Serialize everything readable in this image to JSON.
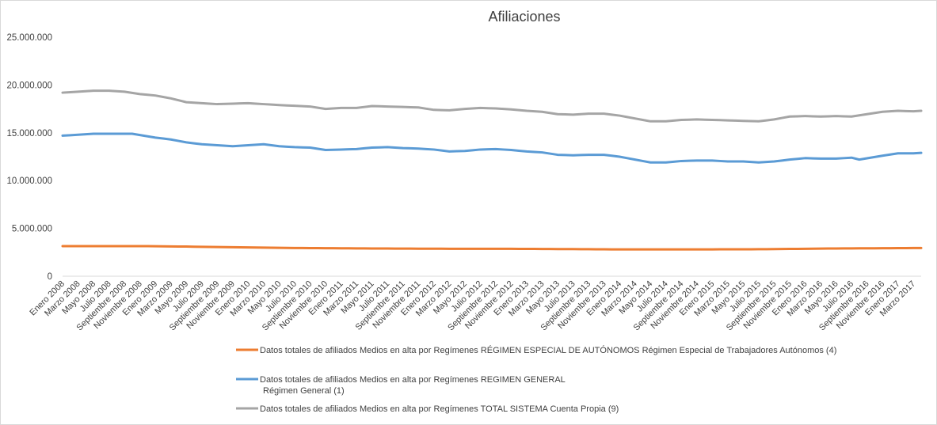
{
  "chart_data": {
    "type": "line",
    "title": "Afiliaciones",
    "xlabel": "",
    "ylabel": "",
    "ylim": [
      0,
      25000000
    ],
    "yticks": [
      0,
      5000000,
      10000000,
      15000000,
      20000000,
      25000000
    ],
    "ytick_labels": [
      "0",
      "5.000.000",
      "10.000.000",
      "15.000.000",
      "20.000.000",
      "25.000.000"
    ],
    "grid": false,
    "legend_position": "bottom",
    "n_points": 112,
    "x_tick_labels": [
      "Enero 2008",
      "Marzo 2008",
      "Mayo 2008",
      "Julio 2008",
      "Septiembre 2008",
      "Noviembre 2008",
      "Enero 2009",
      "Marzo 2009",
      "Mayo 2009",
      "Julio 2009",
      "Septiembre 2009",
      "Noviembre 2009",
      "Enero 2010",
      "Marzo 2010",
      "Mayo 2010",
      "Julio 2010",
      "Septiembre 2010",
      "Noviembre 2010",
      "Enero 2011",
      "Marzo 2011",
      "Mayo 2011",
      "Julio 2011",
      "Septiembre 2011",
      "Noviembre 2011",
      "Enero 2012",
      "Marzo 2012",
      "Mayo 2012",
      "Julio 2012",
      "Septiembre 2012",
      "Noviembre 2012",
      "Enero 2013",
      "Marzo 2013",
      "Mayo 2013",
      "Julio 2013",
      "Septiembre 2013",
      "Noviembre 2013",
      "Enero 2014",
      "Marzo 2014",
      "Mayo 2014",
      "Julio 2014",
      "Septiembre 2014",
      "Noviembre 2014",
      "Enero 2015",
      "Marzo 2015",
      "Mayo 2015",
      "Julio 2015",
      "Septiembre 2015",
      "Noviembre 2015",
      "Enero 2016",
      "Marzo 2016",
      "Mayo 2016",
      "Julio 2016",
      "Septiembre 2016",
      "Noviembre 2016",
      "Enero 2017",
      "Marzo 2017"
    ],
    "series": [
      {
        "name": "autonomos",
        "legend": "Datos totales de afiliados Medios en alta por Regímenes RÉGIMEN ESPECIAL DE AUTÓNOMOS Régimen Especial de Trabajadores Autónomos (4)",
        "color": "#ED7D31",
        "anchors": [
          [
            0,
            3150000
          ],
          [
            10,
            3150000
          ],
          [
            16,
            3100000
          ],
          [
            20,
            3050000
          ],
          [
            30,
            2950000
          ],
          [
            40,
            2900000
          ],
          [
            50,
            2870000
          ],
          [
            60,
            2860000
          ],
          [
            70,
            2810000
          ],
          [
            80,
            2800000
          ],
          [
            90,
            2820000
          ],
          [
            100,
            2900000
          ],
          [
            111,
            2950000
          ]
        ]
      },
      {
        "name": "general",
        "legend_lines": [
          "Datos totales de afiliados Medios en alta por Regímenes REGIMEN GENERAL",
          "Régimen General (1)"
        ],
        "color": "#5B9BD5",
        "anchors": [
          [
            0,
            14700000
          ],
          [
            2,
            14800000
          ],
          [
            4,
            14900000
          ],
          [
            9,
            14900000
          ],
          [
            12,
            14500000
          ],
          [
            14,
            14300000
          ],
          [
            16,
            14000000
          ],
          [
            18,
            13800000
          ],
          [
            22,
            13600000
          ],
          [
            24,
            13700000
          ],
          [
            26,
            13800000
          ],
          [
            28,
            13600000
          ],
          [
            30,
            13500000
          ],
          [
            32,
            13450000
          ],
          [
            34,
            13200000
          ],
          [
            36,
            13250000
          ],
          [
            38,
            13300000
          ],
          [
            40,
            13450000
          ],
          [
            42,
            13500000
          ],
          [
            44,
            13400000
          ],
          [
            46,
            13350000
          ],
          [
            48,
            13250000
          ],
          [
            50,
            13050000
          ],
          [
            52,
            13100000
          ],
          [
            54,
            13250000
          ],
          [
            56,
            13300000
          ],
          [
            58,
            13200000
          ],
          [
            60,
            13050000
          ],
          [
            62,
            12950000
          ],
          [
            64,
            12700000
          ],
          [
            66,
            12650000
          ],
          [
            68,
            12700000
          ],
          [
            70,
            12700000
          ],
          [
            72,
            12500000
          ],
          [
            74,
            12200000
          ],
          [
            76,
            11900000
          ],
          [
            78,
            11900000
          ],
          [
            80,
            12050000
          ],
          [
            82,
            12100000
          ],
          [
            84,
            12100000
          ],
          [
            86,
            12000000
          ],
          [
            88,
            12000000
          ],
          [
            90,
            11900000
          ],
          [
            92,
            12000000
          ],
          [
            94,
            12200000
          ],
          [
            96,
            12350000
          ],
          [
            98,
            12300000
          ],
          [
            100,
            12300000
          ],
          [
            102,
            12400000
          ],
          [
            103,
            12200000
          ],
          [
            106,
            12600000
          ],
          [
            108,
            12850000
          ],
          [
            110,
            12850000
          ],
          [
            111,
            12900000
          ]
        ]
      },
      {
        "name": "total",
        "legend": "Datos totales de afiliados Medios en alta por Regímenes TOTAL SISTEMA Cuenta Propia (9)",
        "color": "#A5A5A5",
        "anchors": [
          [
            0,
            19200000
          ],
          [
            2,
            19300000
          ],
          [
            4,
            19400000
          ],
          [
            6,
            19400000
          ],
          [
            8,
            19300000
          ],
          [
            10,
            19050000
          ],
          [
            12,
            18900000
          ],
          [
            14,
            18600000
          ],
          [
            16,
            18200000
          ],
          [
            20,
            18000000
          ],
          [
            24,
            18100000
          ],
          [
            28,
            17900000
          ],
          [
            32,
            17750000
          ],
          [
            34,
            17500000
          ],
          [
            36,
            17600000
          ],
          [
            38,
            17600000
          ],
          [
            40,
            17800000
          ],
          [
            42,
            17750000
          ],
          [
            44,
            17700000
          ],
          [
            46,
            17650000
          ],
          [
            48,
            17400000
          ],
          [
            50,
            17350000
          ],
          [
            52,
            17500000
          ],
          [
            54,
            17600000
          ],
          [
            56,
            17550000
          ],
          [
            58,
            17450000
          ],
          [
            60,
            17300000
          ],
          [
            62,
            17200000
          ],
          [
            64,
            16950000
          ],
          [
            66,
            16900000
          ],
          [
            68,
            17000000
          ],
          [
            70,
            17000000
          ],
          [
            72,
            16800000
          ],
          [
            74,
            16500000
          ],
          [
            76,
            16200000
          ],
          [
            78,
            16200000
          ],
          [
            80,
            16350000
          ],
          [
            82,
            16400000
          ],
          [
            84,
            16350000
          ],
          [
            86,
            16300000
          ],
          [
            88,
            16250000
          ],
          [
            90,
            16200000
          ],
          [
            92,
            16400000
          ],
          [
            94,
            16700000
          ],
          [
            96,
            16750000
          ],
          [
            98,
            16700000
          ],
          [
            100,
            16750000
          ],
          [
            102,
            16700000
          ],
          [
            104,
            16950000
          ],
          [
            106,
            17200000
          ],
          [
            108,
            17300000
          ],
          [
            110,
            17250000
          ],
          [
            111,
            17300000
          ]
        ]
      }
    ]
  }
}
